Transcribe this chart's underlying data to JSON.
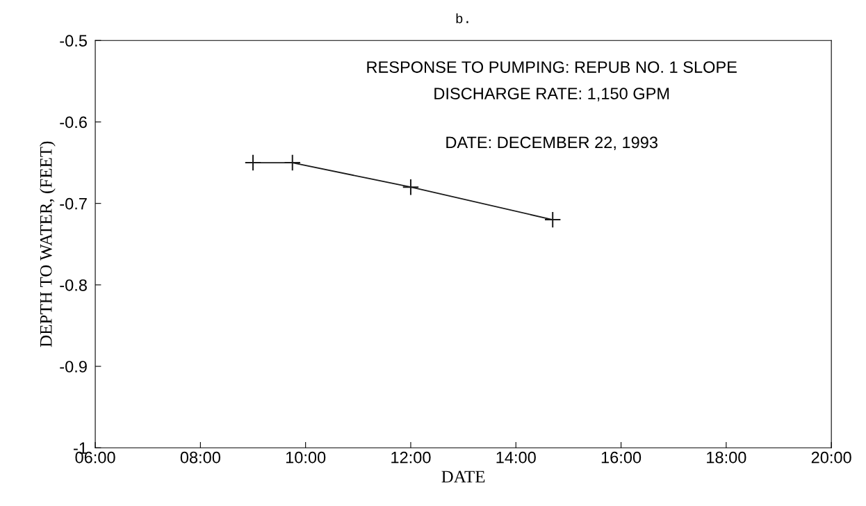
{
  "chart_data": {
    "type": "line",
    "title": "b.",
    "xlabel": "DATE",
    "ylabel": "DEPTH TO WATER, (FEET)",
    "annotations": [
      "RESPONSE TO PUMPING: REPUB NO. 1 SLOPE",
      "DISCHARGE RATE: 1,150 GPM",
      "DATE: DECEMBER 22, 1993"
    ],
    "x": [
      9.0,
      9.75,
      12.0,
      14.7
    ],
    "series": [
      {
        "color": "#1a1a1a",
        "values": [
          -0.65,
          -0.65,
          -0.68,
          -0.72
        ]
      }
    ],
    "xlim": [
      6,
      20
    ],
    "xticks": [
      {
        "value": 6,
        "label": "06:00"
      },
      {
        "value": 8,
        "label": "08:00"
      },
      {
        "value": 10,
        "label": "10:00"
      },
      {
        "value": 12,
        "label": "12:00"
      },
      {
        "value": 14,
        "label": "14:00"
      },
      {
        "value": 16,
        "label": "16:00"
      },
      {
        "value": 18,
        "label": "18:00"
      },
      {
        "value": 20,
        "label": "20:00"
      }
    ],
    "ylim": [
      -1,
      -0.5
    ],
    "yticks": [
      -1,
      -0.9,
      -0.8,
      -0.7,
      -0.6,
      -0.5
    ],
    "grid": false,
    "legend": false,
    "marker": "cross",
    "line_style": "solid"
  }
}
